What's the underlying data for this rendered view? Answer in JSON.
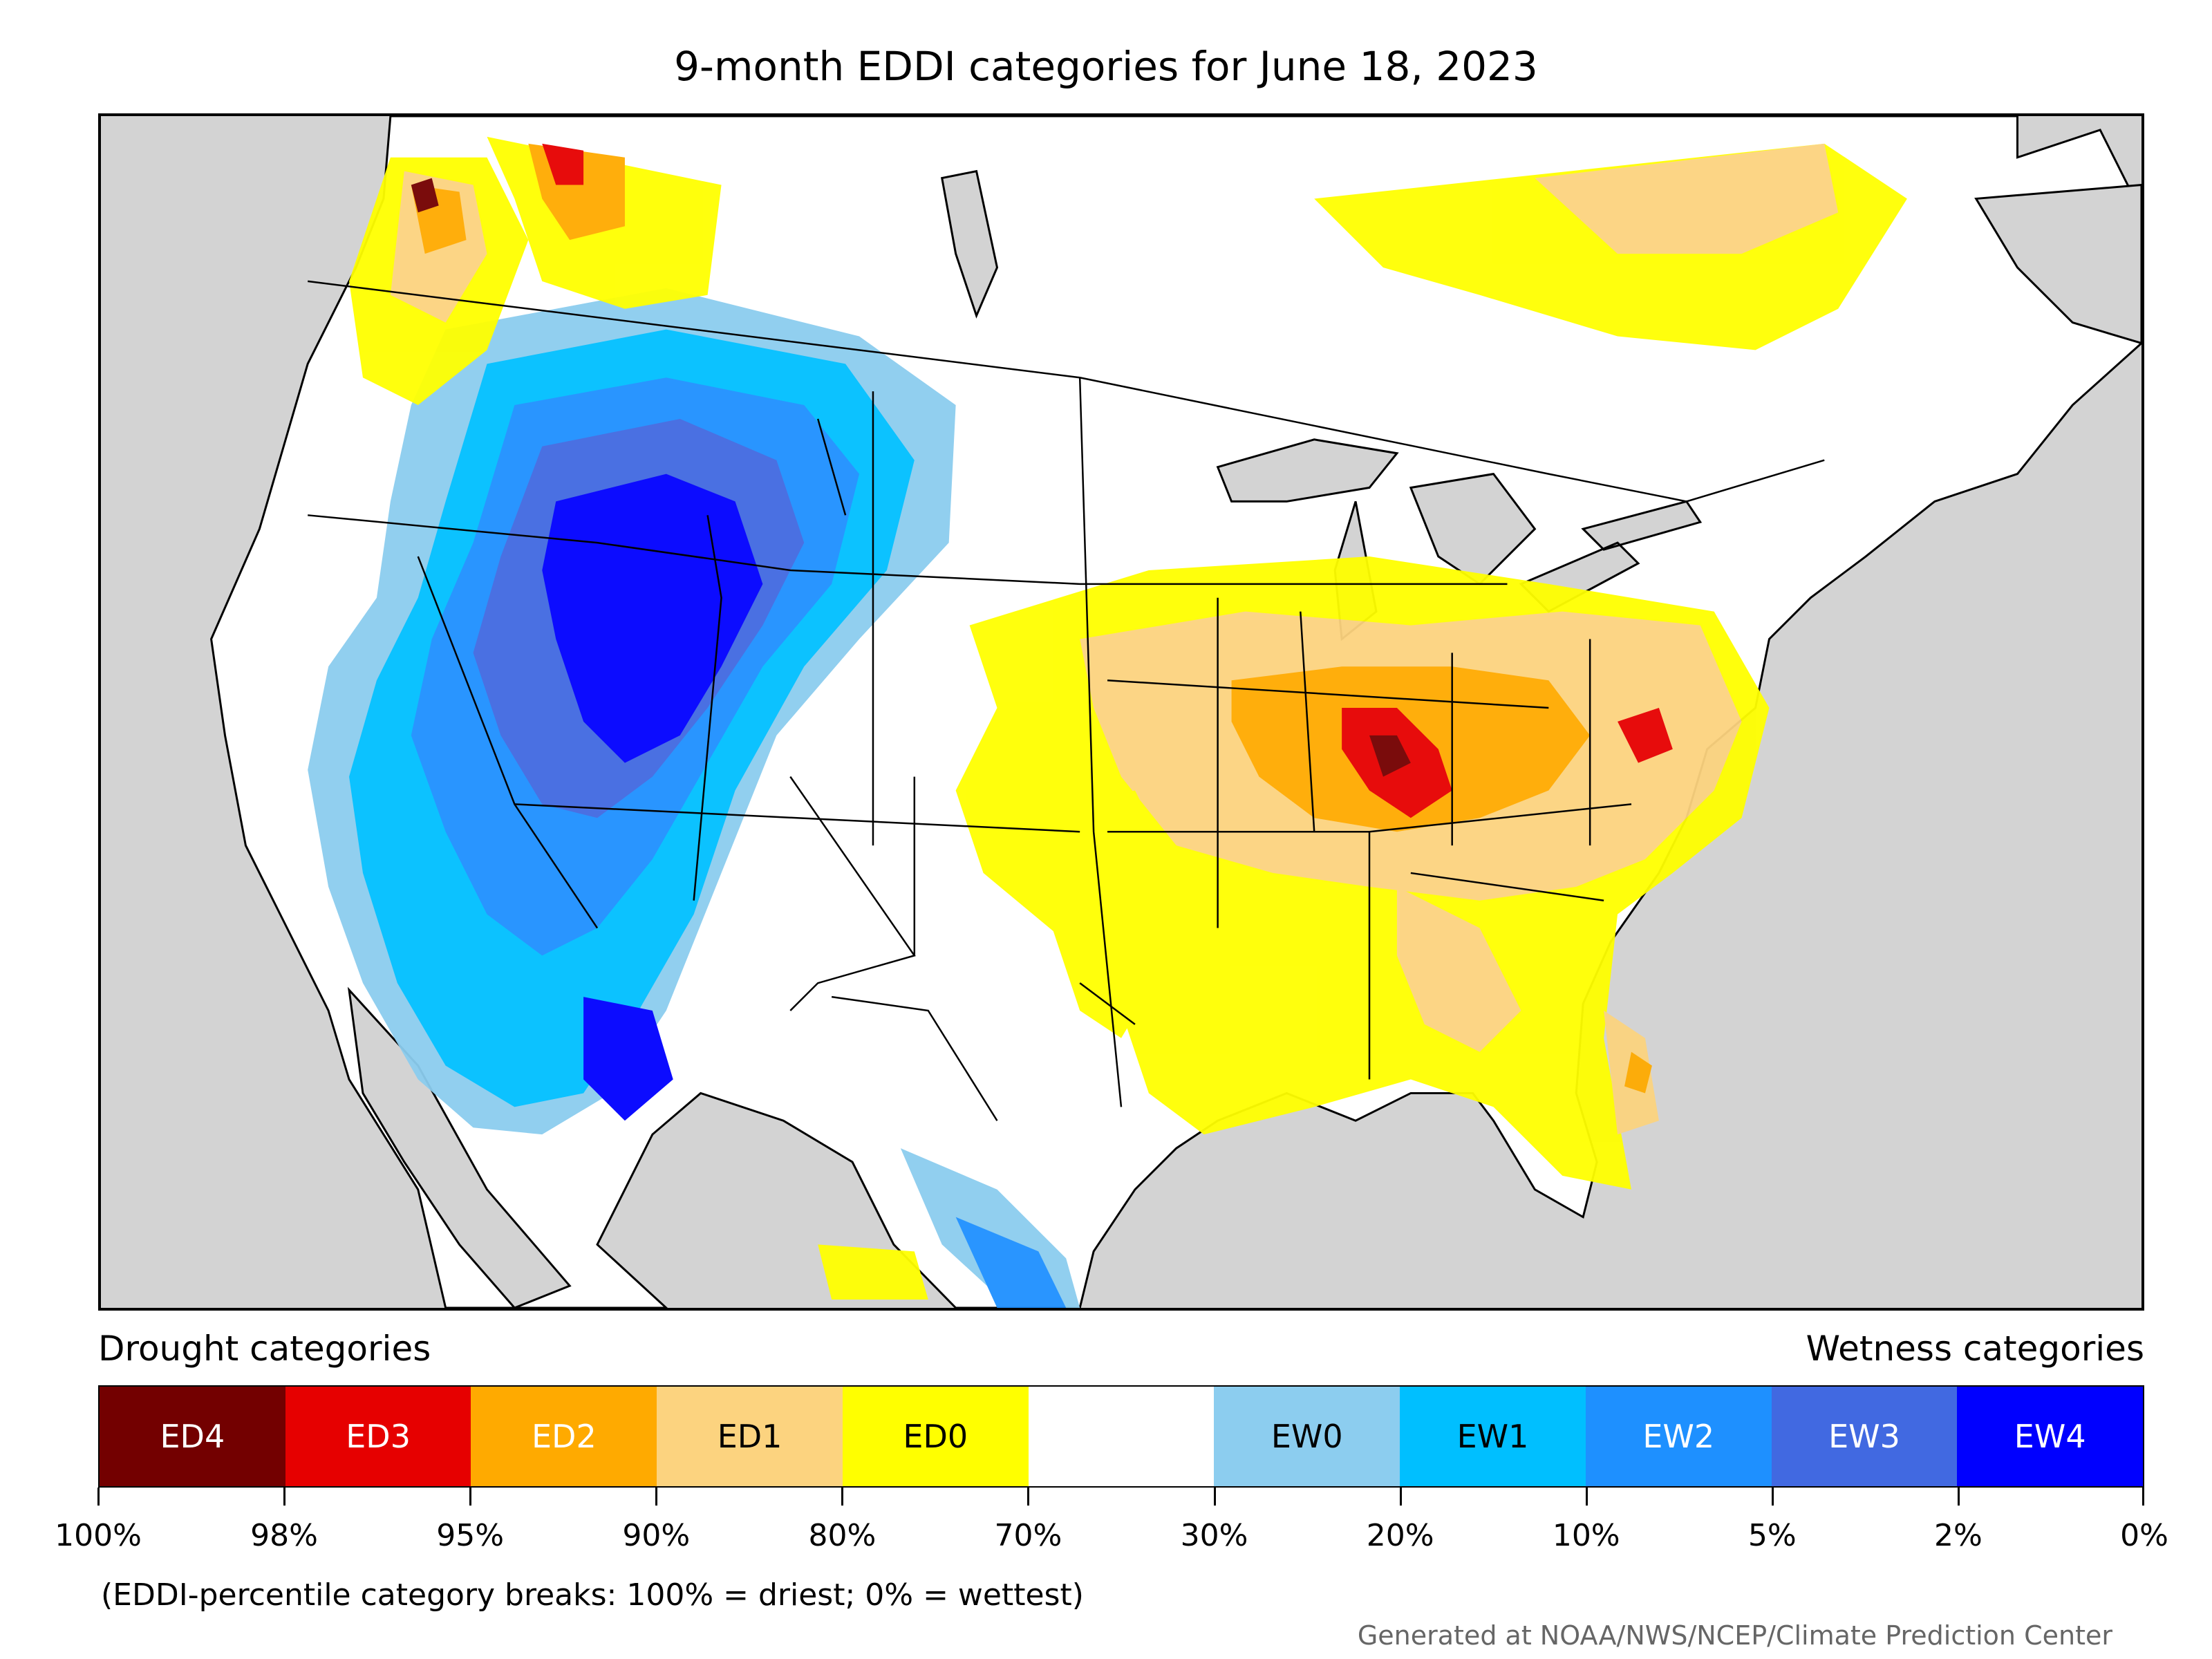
{
  "title": "9-month EDDI categories for June 18, 2023",
  "legend": {
    "drought_label": "Drought categories",
    "wetness_label": "Wetness categories",
    "categories": [
      {
        "label": "ED4",
        "color": "#730000",
        "text_color": "#ffffff"
      },
      {
        "label": "ED3",
        "color": "#e60000",
        "text_color": "#ffffff"
      },
      {
        "label": "ED2",
        "color": "#ffaa00",
        "text_color": "#ffffff"
      },
      {
        "label": "ED1",
        "color": "#fcd37f",
        "text_color": "#000000"
      },
      {
        "label": "ED0",
        "color": "#ffff00",
        "text_color": "#000000"
      },
      {
        "label": "",
        "color": "#ffffff",
        "text_color": "#000000"
      },
      {
        "label": "EW0",
        "color": "#8ccdef",
        "text_color": "#000000"
      },
      {
        "label": "EW1",
        "color": "#00bfff",
        "text_color": "#000000"
      },
      {
        "label": "EW2",
        "color": "#1e90ff",
        "text_color": "#ffffff"
      },
      {
        "label": "EW3",
        "color": "#4169e1",
        "text_color": "#ffffff"
      },
      {
        "label": "EW4",
        "color": "#0000ff",
        "text_color": "#ffffff"
      }
    ],
    "tick_labels": [
      "100%",
      "98%",
      "95%",
      "90%",
      "80%",
      "70%",
      "30%",
      "20%",
      "10%",
      "5%",
      "2%",
      "0%"
    ]
  },
  "note": "(EDDI-percentile category breaks: 100% = driest; 0% = wettest)",
  "credit": "Generated at NOAA/NWS/NCEP/Climate Prediction Center",
  "map_colors": {
    "ocean": "#d3d3d3",
    "land": "#ffffff",
    "boundary": "#000000"
  }
}
